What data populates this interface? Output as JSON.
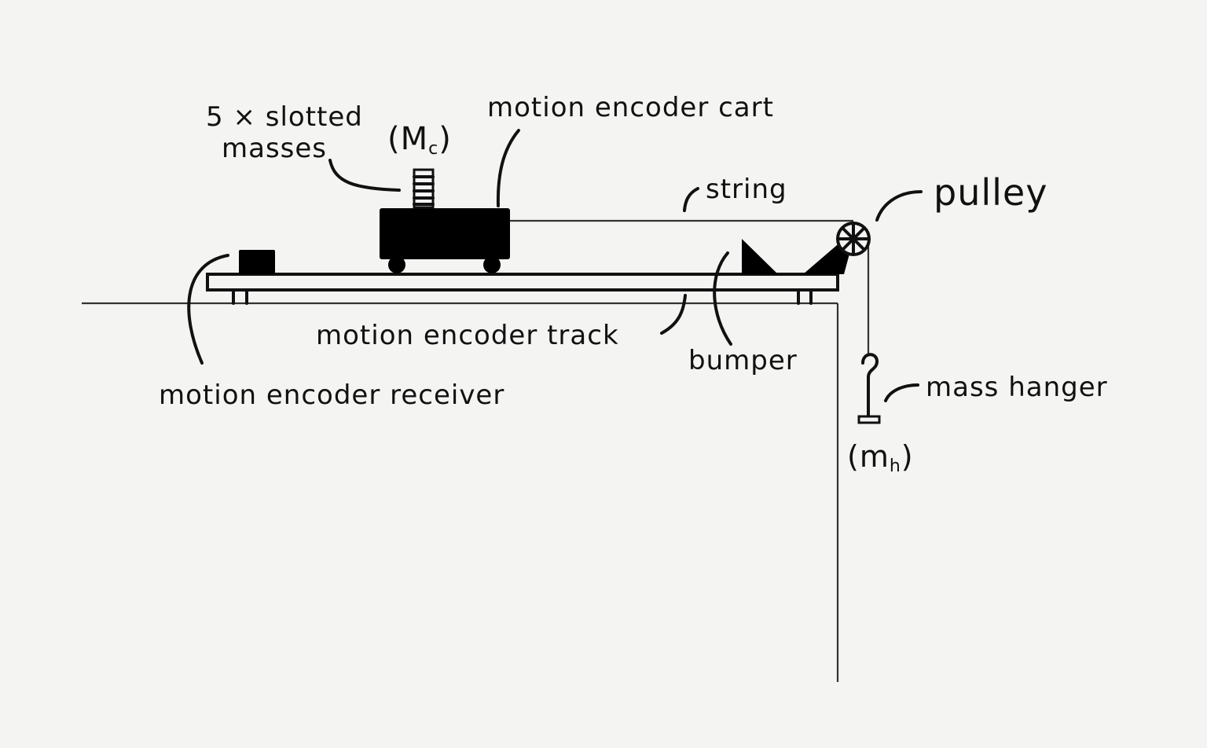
{
  "labels": {
    "slotted_masses_line1": "5 × slotted",
    "slotted_masses_line2": "masses",
    "cart_mass_main": "(M",
    "cart_mass_sub": "c",
    "cart_mass_close": ")",
    "cart": "motion encoder cart",
    "string": "string",
    "pulley": "pulley",
    "track": "motion encoder track",
    "bumper": "bumper",
    "receiver": "motion encoder receiver",
    "mass_hanger": "mass hanger",
    "hanger_mass_main": "(m",
    "hanger_mass_sub": "h",
    "hanger_mass_close": ")"
  },
  "colors": {
    "background": "#f4f4f3",
    "ink": "#111111",
    "lines": "#333333"
  }
}
